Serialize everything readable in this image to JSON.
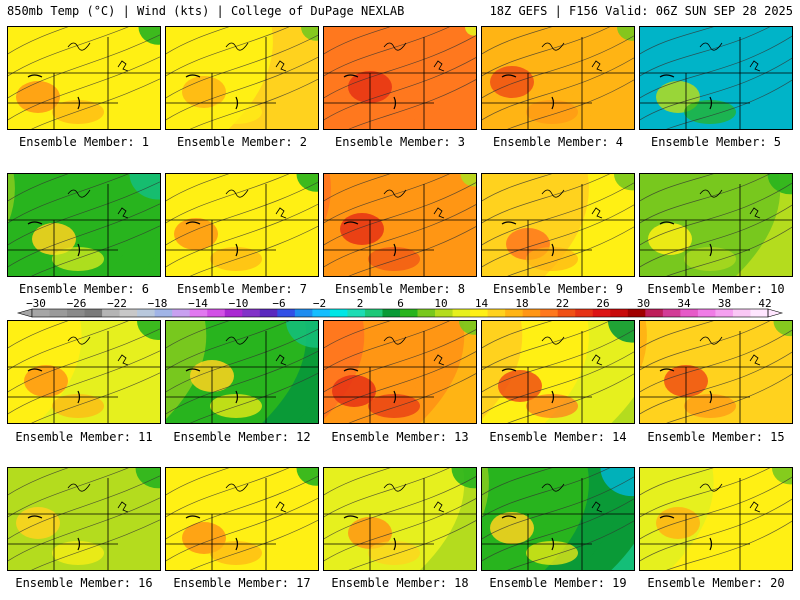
{
  "header": {
    "left": "850mb Temp (°C) | Wind (kts) | College of DuPage NEXLAB",
    "right": "18Z GEFS | F156 Valid: 06Z SUN SEP 28 2025"
  },
  "members": [
    {
      "label": "Ensemble Member: 1",
      "warmth": 0.55,
      "cold_ne": 0.45
    },
    {
      "label": "Ensemble Member: 2",
      "warmth": 0.45,
      "cold_ne": 0.3
    },
    {
      "label": "Ensemble Member: 3",
      "warmth": 0.75,
      "cold_ne": 0.1
    },
    {
      "label": "Ensemble Member: 4",
      "warmth": 0.65,
      "cold_ne": 0.3
    },
    {
      "label": "Ensemble Member: 5",
      "warmth": 0.1,
      "cold_ne": 0.9
    },
    {
      "label": "Ensemble Member: 6",
      "warmth": 0.35,
      "cold_ne": 0.75
    },
    {
      "label": "Ensemble Member: 7",
      "warmth": 0.55,
      "cold_ne": 0.45
    },
    {
      "label": "Ensemble Member: 8",
      "warmth": 0.8,
      "cold_ne": 0.25
    },
    {
      "label": "Ensemble Member: 9",
      "warmth": 0.6,
      "cold_ne": 0.4
    },
    {
      "label": "Ensemble Member: 10",
      "warmth": 0.3,
      "cold_ne": 0.55
    },
    {
      "label": "Ensemble Member: 11",
      "warmth": 0.55,
      "cold_ne": 0.5
    },
    {
      "label": "Ensemble Member: 12",
      "warmth": 0.4,
      "cold_ne": 0.8
    },
    {
      "label": "Ensemble Member: 13",
      "warmth": 0.85,
      "cold_ne": 0.3
    },
    {
      "label": "Ensemble Member: 14",
      "warmth": 0.7,
      "cold_ne": 0.6
    },
    {
      "label": "Ensemble Member: 15",
      "warmth": 0.65,
      "cold_ne": 0.35
    },
    {
      "label": "Ensemble Member: 16",
      "warmth": 0.4,
      "cold_ne": 0.55
    },
    {
      "label": "Ensemble Member: 17",
      "warmth": 0.55,
      "cold_ne": 0.45
    },
    {
      "label": "Ensemble Member: 18",
      "warmth": 0.5,
      "cold_ne": 0.55
    },
    {
      "label": "Ensemble Member: 19",
      "warmth": 0.4,
      "cold_ne": 0.85
    },
    {
      "label": "Ensemble Member: 20",
      "warmth": 0.45,
      "cold_ne": 0.4
    }
  ],
  "colorbar": {
    "colors": [
      "#a6a6a6",
      "#9a9a9a",
      "#8a8a8a",
      "#7a7a7a",
      "#b4b4b4",
      "#c8c8c8",
      "#b8c8dc",
      "#a0b4e6",
      "#c8a0f0",
      "#e178f0",
      "#d250e6",
      "#aa28d2",
      "#8232c8",
      "#5a28be",
      "#3250e6",
      "#1e8cf0",
      "#14beff",
      "#00e6e6",
      "#1edcb4",
      "#1ec878",
      "#0a9a37",
      "#28b41e",
      "#78c81e",
      "#b4dc1e",
      "#e6f01e",
      "#fff014",
      "#ffd21e",
      "#ffb414",
      "#ff9614",
      "#ff781e",
      "#f05014",
      "#e63214",
      "#dc1414",
      "#c80a0a",
      "#a00000",
      "#be1e5a",
      "#d23c96",
      "#e65ac8",
      "#f07ce6",
      "#f5a0f0",
      "#fac8f5",
      "#ffe6ff"
    ],
    "labels": [
      "−30",
      "−26",
      "−22",
      "−18",
      "−14",
      "−10",
      "−6",
      "−2",
      "2",
      "6",
      "10",
      "14",
      "18",
      "22",
      "26",
      "30",
      "34",
      "38",
      "42"
    ]
  }
}
